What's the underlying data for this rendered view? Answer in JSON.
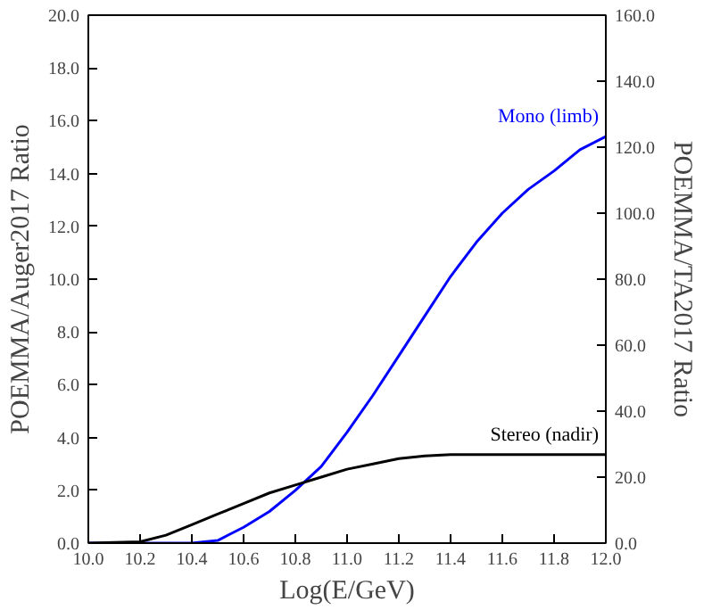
{
  "chart_data": {
    "type": "line",
    "xlabel": "Log(E/GeV)",
    "ylabel": "POEMMA/Auger2017 Ratio",
    "y2label": "POEMMA/TA2017 Ratio",
    "xlim": [
      10.0,
      12.0
    ],
    "xticks": [
      {
        "value": 10.0,
        "label": "10.0"
      },
      {
        "value": 10.2,
        "label": "10.2"
      },
      {
        "value": 10.4,
        "label": "10.4"
      },
      {
        "value": 10.6,
        "label": "10.6"
      },
      {
        "value": 10.8,
        "label": "10.8"
      },
      {
        "value": 11.0,
        "label": "11.0"
      },
      {
        "value": 11.2,
        "label": "11.2"
      },
      {
        "value": 11.4,
        "label": "11.4"
      },
      {
        "value": 11.6,
        "label": "11.6"
      },
      {
        "value": 11.8,
        "label": "11.8"
      },
      {
        "value": 12.0,
        "label": "12.0"
      }
    ],
    "ylim": [
      0,
      20
    ],
    "yticks": [
      {
        "value": 0,
        "label": "0.0"
      },
      {
        "value": 2,
        "label": "2.0"
      },
      {
        "value": 4,
        "label": "4.0"
      },
      {
        "value": 6,
        "label": "6.0"
      },
      {
        "value": 8,
        "label": "8.0"
      },
      {
        "value": 10,
        "label": "10.0"
      },
      {
        "value": 12,
        "label": "12.0"
      },
      {
        "value": 14,
        "label": "14.0"
      },
      {
        "value": 16,
        "label": "16.0"
      },
      {
        "value": 18,
        "label": "18.0"
      },
      {
        "value": 20,
        "label": "20.0"
      }
    ],
    "y2lim": [
      0,
      160
    ],
    "y2ticks": [
      {
        "value": 0,
        "label": "0.0"
      },
      {
        "value": 20,
        "label": "20.0"
      },
      {
        "value": 40,
        "label": "40.0"
      },
      {
        "value": 60,
        "label": "60.0"
      },
      {
        "value": 80,
        "label": "80.0"
      },
      {
        "value": 100,
        "label": "100.0"
      },
      {
        "value": 120,
        "label": "120.0"
      },
      {
        "value": 140,
        "label": "140.0"
      },
      {
        "value": 160,
        "label": "160.0"
      }
    ],
    "grid": false,
    "line_style": "solid",
    "marker": "none",
    "x": [
      10.0,
      10.2,
      10.3,
      10.4,
      10.5,
      10.6,
      10.7,
      10.8,
      10.9,
      11.0,
      11.1,
      11.2,
      11.3,
      11.4,
      11.5,
      11.6,
      11.7,
      11.8,
      11.9,
      12.0
    ],
    "series": [
      {
        "name": "Mono (limb)",
        "color": "#0000ff",
        "values": [
          0,
          0,
          0,
          0,
          0.1,
          0.6,
          1.2,
          2.0,
          2.9,
          4.2,
          5.6,
          7.1,
          8.6,
          10.1,
          11.4,
          12.5,
          13.4,
          14.1,
          14.9,
          15.4
        ]
      },
      {
        "name": "Stereo (nadir)",
        "color": "#000000",
        "values": [
          0,
          0.05,
          0.3,
          0.7,
          1.1,
          1.5,
          1.9,
          2.2,
          2.5,
          2.8,
          3.0,
          3.2,
          3.3,
          3.35,
          3.35,
          3.35,
          3.35,
          3.35,
          3.35,
          3.35
        ]
      }
    ]
  }
}
